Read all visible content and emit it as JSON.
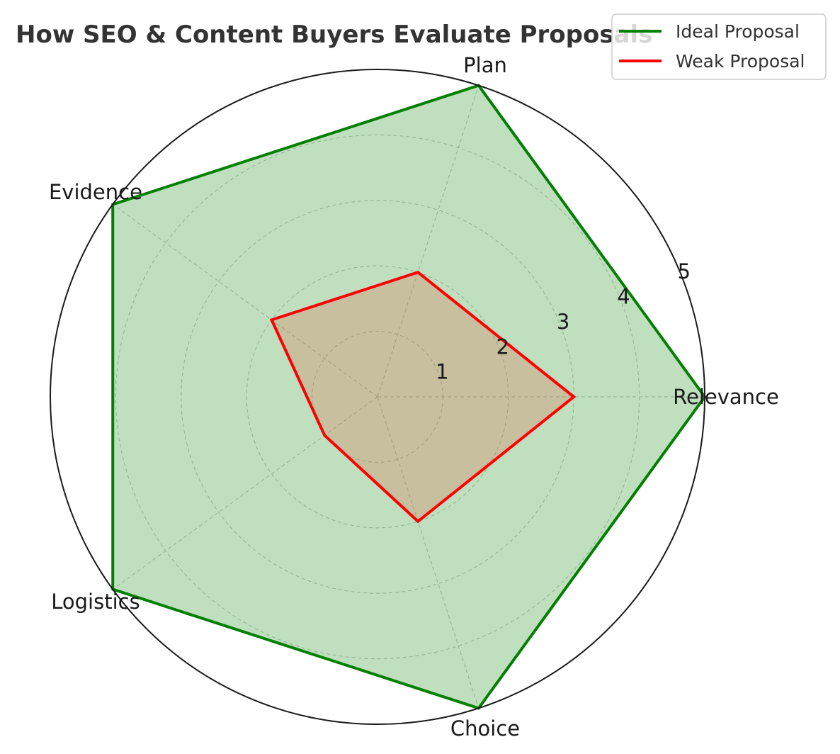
{
  "chart_data": {
    "type": "radar",
    "title": "How SEO & Content Buyers Evaluate Proposals",
    "categories": [
      "Relevance",
      "Plan",
      "Evidence",
      "Logistics",
      "Choice"
    ],
    "rlim": [
      0,
      5
    ],
    "rticks": [
      "1",
      "2",
      "3",
      "4",
      "5"
    ],
    "rtick_values": [
      1,
      2,
      3,
      4,
      5
    ],
    "grid": true,
    "legend_position": "top-right",
    "series": [
      {
        "name": "Ideal Proposal",
        "values": [
          5,
          5,
          5,
          5,
          5
        ],
        "color": "#008000",
        "fill": "#008000"
      },
      {
        "name": "Weak Proposal",
        "values": [
          3,
          2,
          2,
          1,
          2
        ],
        "color": "#ff0000",
        "fill": "#e0603a"
      }
    ]
  }
}
